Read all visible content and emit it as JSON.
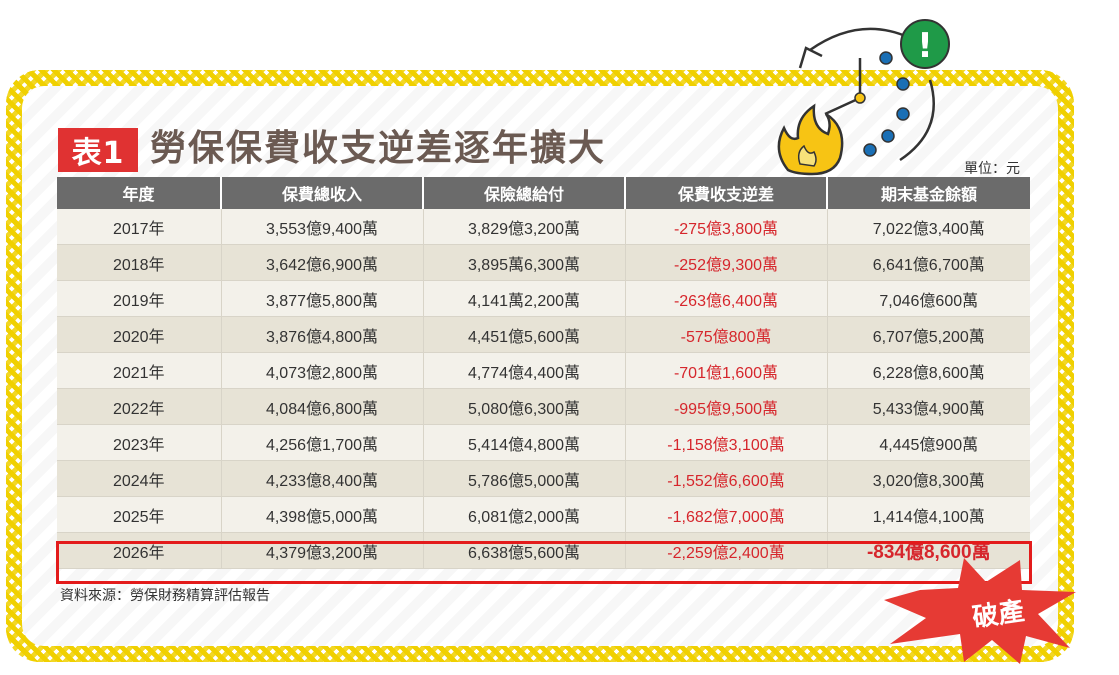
{
  "title": {
    "tag": "表1",
    "text": "勞保保費收支逆差逐年擴大"
  },
  "unit": "單位：元",
  "table": {
    "headers": [
      "年度",
      "保費總收入",
      "保險總給付",
      "保費收支逆差",
      "期末基金餘額"
    ],
    "rows": [
      [
        "2017年",
        "3,553億9,400萬",
        "3,829億3,200萬",
        "-275億3,800萬",
        "7,022億3,400萬"
      ],
      [
        "2018年",
        "3,642億6,900萬",
        "3,895萬6,300萬",
        "-252億9,300萬",
        "6,641億6,700萬"
      ],
      [
        "2019年",
        "3,877億5,800萬",
        "4,141萬2,200萬",
        "-263億6,400萬",
        "7,046億600萬"
      ],
      [
        "2020年",
        "3,876億4,800萬",
        "4,451億5,600萬",
        "-575億800萬",
        "6,707億5,200萬"
      ],
      [
        "2021年",
        "4,073億2,800萬",
        "4,774億4,400萬",
        "-701億1,600萬",
        "6,228億8,600萬"
      ],
      [
        "2022年",
        "4,084億6,800萬",
        "5,080億6,300萬",
        "-995億9,500萬",
        "5,433億4,900萬"
      ],
      [
        "2023年",
        "4,256億1,700萬",
        "5,414億4,800萬",
        "-1,158億3,100萬",
        "4,445億900萬"
      ],
      [
        "2024年",
        "4,233億8,400萬",
        "5,786億5,000萬",
        "-1,552億6,600萬",
        "3,020億8,300萬"
      ],
      [
        "2025年",
        "4,398億5,000萬",
        "6,081億2,000萬",
        "-1,682億7,000萬",
        "1,414億4,100萬"
      ],
      [
        "2026年",
        "4,379億3,200萬",
        "6,638億5,600萬",
        "-2,259億2,400萬",
        "-834億8,600萬"
      ]
    ]
  },
  "source": "資料來源：勞保財務精算評估報告",
  "burst_label": "破產",
  "alert_symbol": "!",
  "colors": {
    "title_tag": "#e03232",
    "header_bg": "#6b6b6b",
    "negative": "#d6262c",
    "highlight": "#e31b1b",
    "frame": "#f0d000",
    "alert": "#1f9a48",
    "dots": "#1a6fb5",
    "flame": "#f7c414"
  },
  "icons": [
    "fire-icon",
    "clock-icon",
    "alert-icon"
  ]
}
